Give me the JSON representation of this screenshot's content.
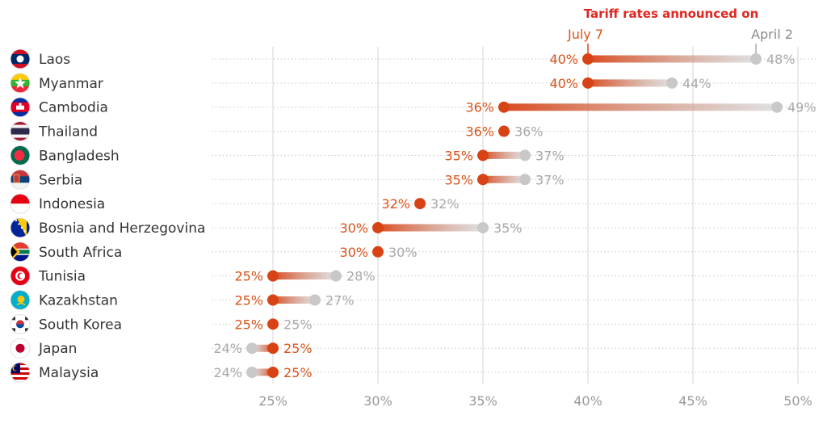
{
  "chart_data": {
    "type": "dumbbell",
    "legend_title": "Tariff rates announced on",
    "series": [
      {
        "name": "July 7",
        "color": "#d84315"
      },
      {
        "name": "April 2",
        "color": "#c8c8c8"
      }
    ],
    "x_ticks": [
      "25%",
      "30%",
      "35%",
      "40%",
      "45%",
      "50%"
    ],
    "xlim": [
      22,
      51
    ],
    "rows": [
      {
        "country": "Laos",
        "flag": "laos-flag",
        "july7": 40,
        "april2": 48,
        "july7_label": "40%",
        "april2_label": "48%"
      },
      {
        "country": "Myanmar",
        "flag": "myanmar-flag",
        "july7": 40,
        "april2": 44,
        "july7_label": "40%",
        "april2_label": "44%"
      },
      {
        "country": "Cambodia",
        "flag": "cambodia-flag",
        "july7": 36,
        "april2": 49,
        "july7_label": "36%",
        "april2_label": "49%"
      },
      {
        "country": "Thailand",
        "flag": "thailand-flag",
        "july7": 36,
        "april2": 36,
        "july7_label": "36%",
        "april2_label": "36%"
      },
      {
        "country": "Bangladesh",
        "flag": "bangladesh-flag",
        "july7": 35,
        "april2": 37,
        "july7_label": "35%",
        "april2_label": "37%"
      },
      {
        "country": "Serbia",
        "flag": "serbia-flag",
        "july7": 35,
        "april2": 37,
        "july7_label": "35%",
        "april2_label": "37%"
      },
      {
        "country": "Indonesia",
        "flag": "indonesia-flag",
        "july7": 32,
        "april2": 32,
        "july7_label": "32%",
        "april2_label": "32%"
      },
      {
        "country": "Bosnia and Herzegovina",
        "flag": "bosnia-flag",
        "july7": 30,
        "april2": 35,
        "july7_label": "30%",
        "april2_label": "35%"
      },
      {
        "country": "South Africa",
        "flag": "south-africa-flag",
        "july7": 30,
        "april2": 30,
        "july7_label": "30%",
        "april2_label": "30%"
      },
      {
        "country": "Tunisia",
        "flag": "tunisia-flag",
        "july7": 25,
        "april2": 28,
        "july7_label": "25%",
        "april2_label": "28%"
      },
      {
        "country": "Kazakhstan",
        "flag": "kazakhstan-flag",
        "july7": 25,
        "april2": 27,
        "july7_label": "25%",
        "april2_label": "27%"
      },
      {
        "country": "South Korea",
        "flag": "south-korea-flag",
        "july7": 25,
        "april2": 25,
        "july7_label": "25%",
        "april2_label": "25%"
      },
      {
        "country": "Japan",
        "flag": "japan-flag",
        "july7": 25,
        "april2": 24,
        "july7_label": "25%",
        "april2_label": "24%"
      },
      {
        "country": "Malaysia",
        "flag": "malaysia-flag",
        "july7": 25,
        "april2": 24,
        "july7_label": "25%",
        "april2_label": "24%"
      }
    ]
  }
}
